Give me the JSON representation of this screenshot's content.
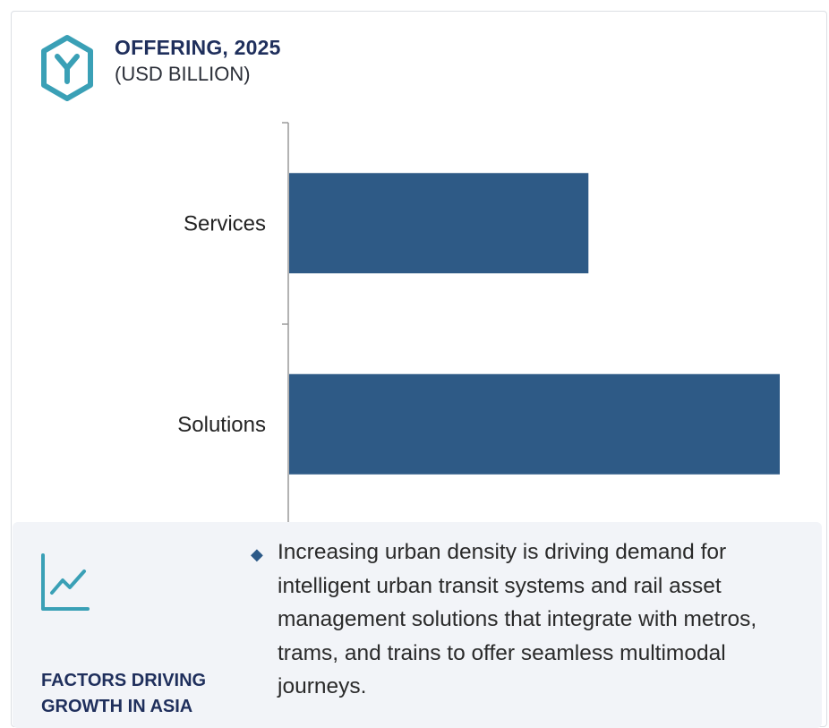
{
  "header": {
    "title": "OFFERING, 2025",
    "subtitle": "(USD BILLION)",
    "icon": "hexagon-y-icon"
  },
  "chart_data": {
    "type": "bar",
    "orientation": "horizontal",
    "title": "OFFERING, 2025",
    "subtitle": "(USD BILLION)",
    "categories": [
      "Services",
      "Solutions"
    ],
    "values": [
      0.61,
      1.0
    ],
    "xlim": [
      0,
      1.0
    ],
    "value_labels_shown": false,
    "grid": false,
    "bar_color": "#2e5a86"
  },
  "factors": {
    "icon": "trend-line-icon",
    "title": "FACTORS DRIVING GROWTH IN ASIA",
    "bullet": "Increasing urban density is driving demand for intelligent urban transit systems and rail asset management solutions that integrate with metros, trams, and trains to offer seamless multimodal journeys."
  },
  "colors": {
    "accent": "#2e5a86",
    "heading": "#1f2f5c",
    "icon": "#3aa0b6",
    "panel_bg": "#f2f4f8"
  }
}
